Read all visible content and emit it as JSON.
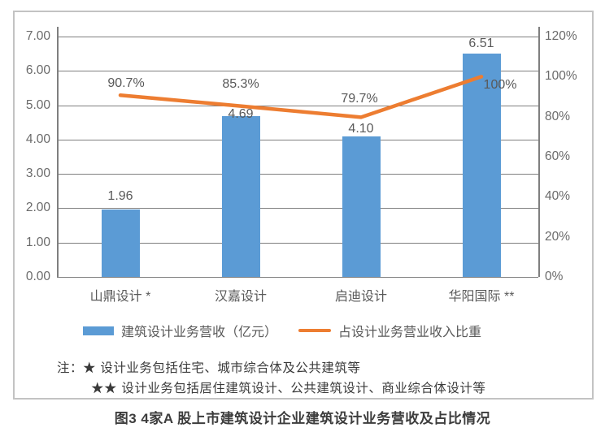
{
  "figure": {
    "caption": "图3 4家A 股上市建筑设计企业建筑设计业务营收及占比情况"
  },
  "chart_data": {
    "type": "bar",
    "subtype": "combo-bar-line",
    "categories": [
      "山鼎设计 *",
      "汉嘉设计",
      "启迪设计",
      "华阳国际 **"
    ],
    "series": [
      {
        "name": "建筑设计业务营收（亿元）",
        "type": "bar",
        "axis": "left",
        "values": [
          1.96,
          4.69,
          4.1,
          6.51
        ],
        "labels": [
          "1.96",
          "4.69",
          "4.10",
          "6.51"
        ],
        "color": "#5B9BD5"
      },
      {
        "name": "占设计业务营业收入比重",
        "type": "line",
        "axis": "right",
        "values": [
          90.7,
          85.3,
          79.7,
          100
        ],
        "labels": [
          "90.7%",
          "85.3%",
          "79.7%",
          "100%"
        ],
        "color": "#ED7D31"
      }
    ],
    "left_axis": {
      "min": 0,
      "max": 7,
      "step": 1,
      "ticks": [
        "7.00",
        "6.00",
        "5.00",
        "4.00",
        "3.00",
        "2.00",
        "1.00",
        "0.00"
      ]
    },
    "right_axis": {
      "min": 0,
      "max": 120,
      "step": 20,
      "ticks": [
        "120%",
        "100%",
        "80%",
        "60%",
        "40%",
        "20%",
        "0%"
      ]
    },
    "grid": true,
    "legend_position": "bottom",
    "title": ""
  },
  "legend": {
    "bar_label": "建筑设计业务营收（亿元）",
    "line_label": "占设计业务营业收入比重"
  },
  "notes": {
    "line1": "注：★ 设计业务包括住宅、城市综合体及公共建筑等",
    "line2": "★★ 设计业务包括居住建筑设计、公共建筑设计、商业综合体设计等"
  },
  "colors": {
    "bar": "#5B9BD5",
    "line": "#ED7D31",
    "grid": "#7f7f7f",
    "border": "#c3c3c3",
    "text": "#595959"
  }
}
